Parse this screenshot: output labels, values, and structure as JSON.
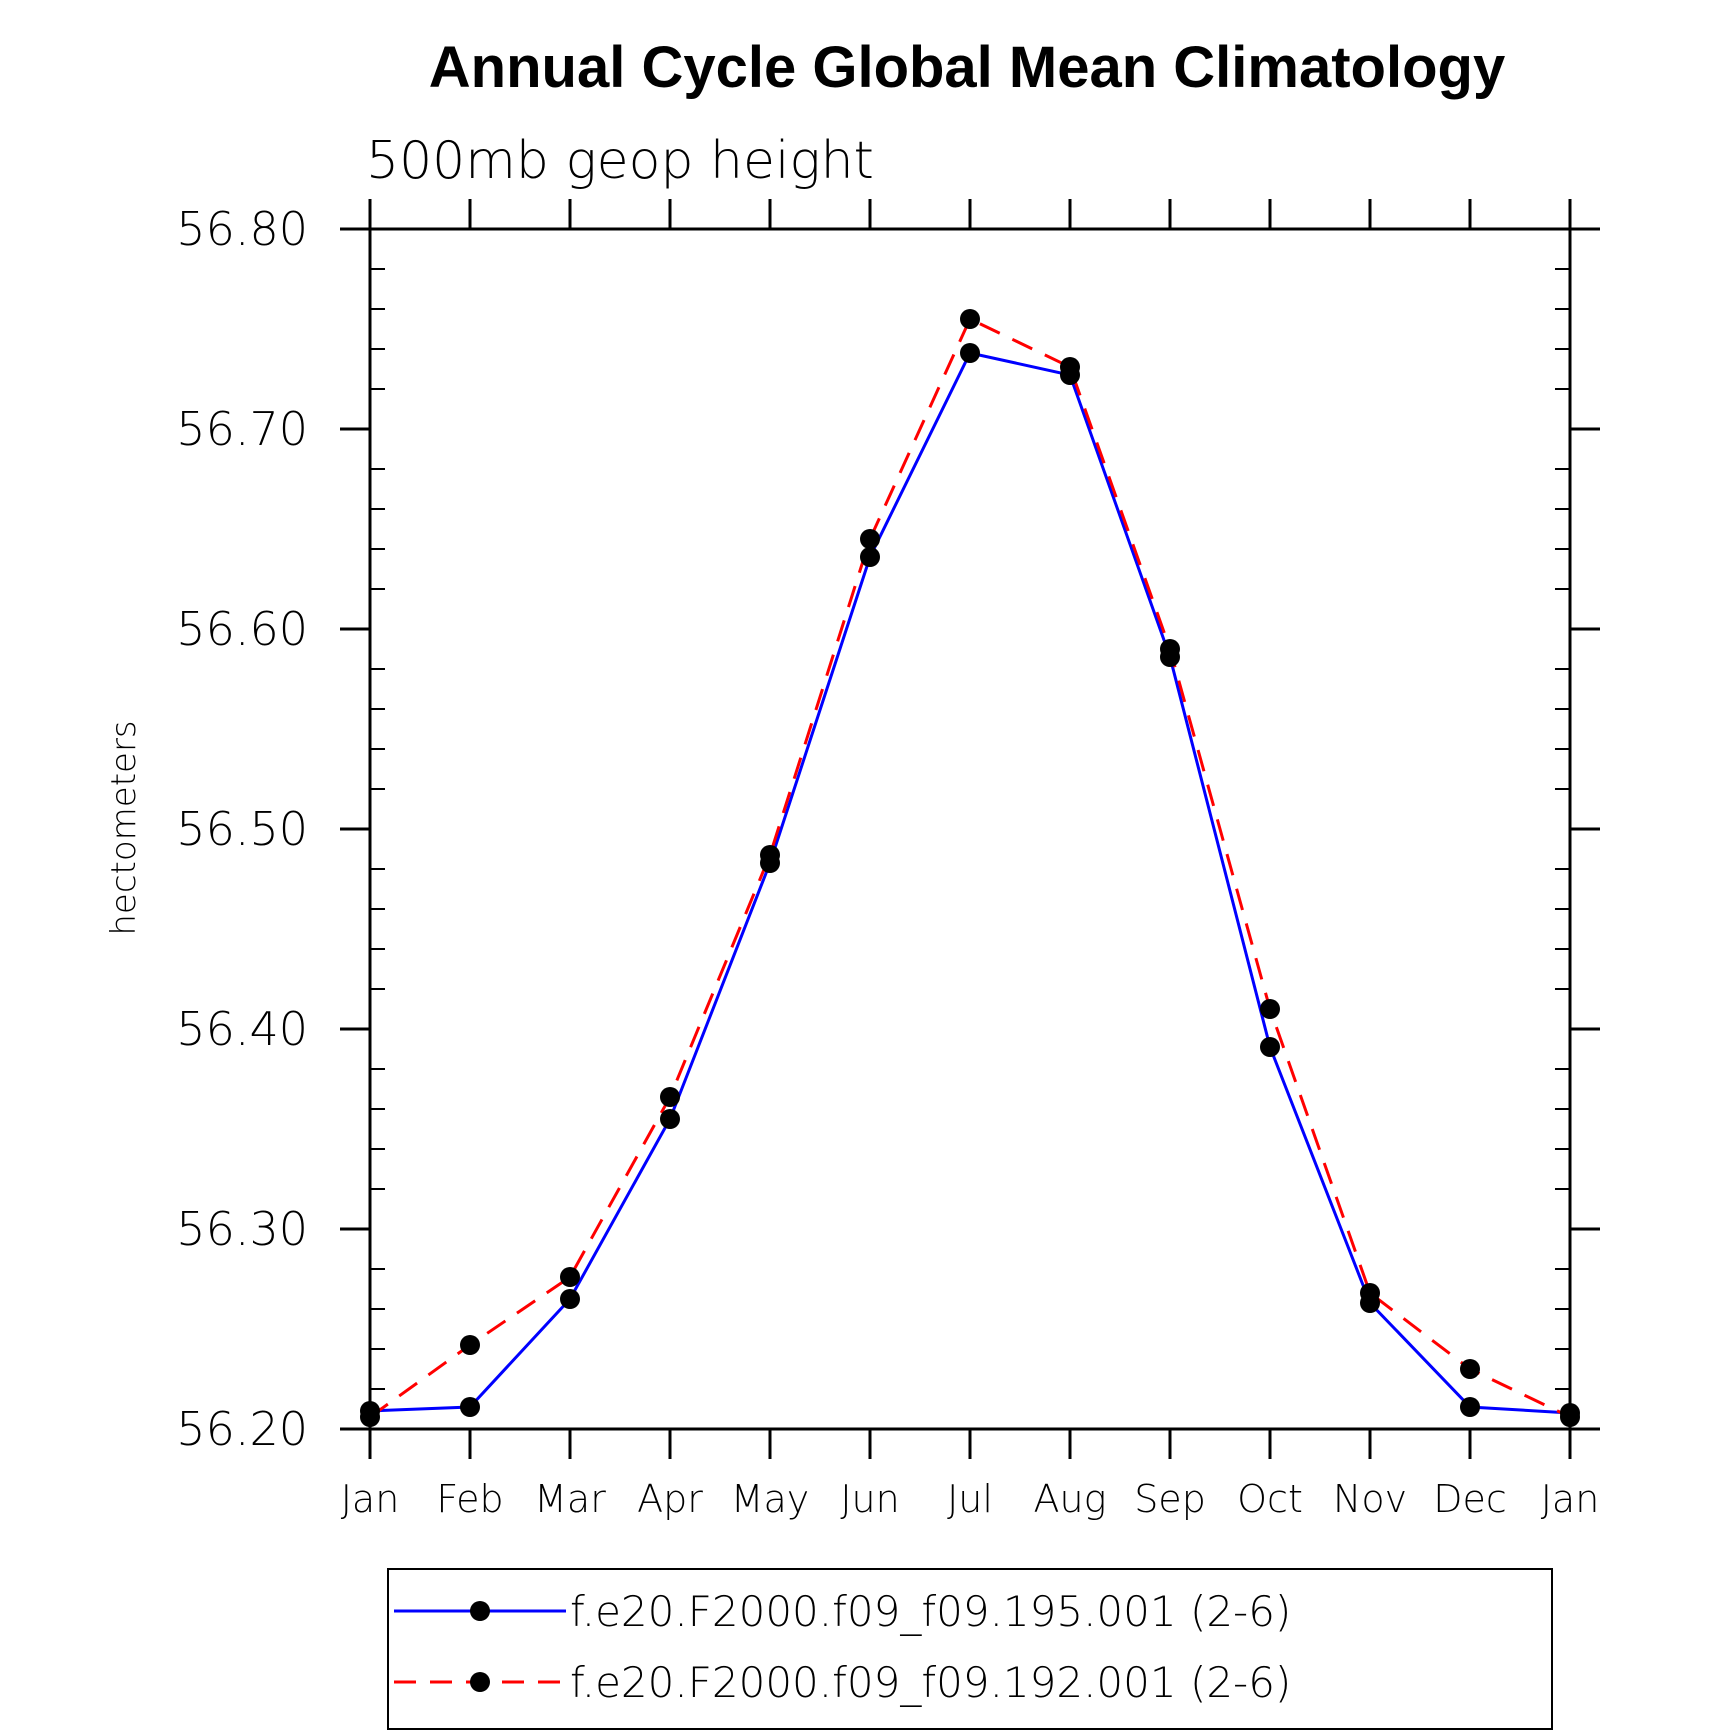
{
  "chart_data": {
    "type": "line",
    "title": "Annual Cycle Global Mean Climatology",
    "subtitle": "500mb geop height",
    "xlabel": "",
    "ylabel": "hectometers",
    "categories": [
      "Jan",
      "Feb",
      "Mar",
      "Apr",
      "May",
      "Jun",
      "Jul",
      "Aug",
      "Sep",
      "Oct",
      "Nov",
      "Dec",
      "Jan"
    ],
    "ylim": [
      56.2,
      56.8
    ],
    "yticks": [
      "56.20",
      "56.30",
      "56.40",
      "56.50",
      "56.60",
      "56.70",
      "56.80"
    ],
    "grid": false,
    "legend_position": "bottom",
    "series": [
      {
        "name": "f.e20.F2000.f09_f09.195.001 (2-6)",
        "color": "#0000ff",
        "line_style": "solid",
        "marker": "filled-circle",
        "values": [
          56.209,
          56.211,
          56.265,
          56.355,
          56.483,
          56.636,
          56.738,
          56.727,
          56.586,
          56.391,
          56.263,
          56.211,
          56.208
        ]
      },
      {
        "name": "f.e20.F2000.f09_f09.192.001 (2-6)",
        "color": "#ff0000",
        "line_style": "dashed",
        "marker": "filled-circle",
        "values": [
          56.206,
          56.242,
          56.276,
          56.366,
          56.487,
          56.645,
          56.755,
          56.731,
          56.59,
          56.41,
          56.268,
          56.23,
          56.206
        ]
      }
    ]
  }
}
